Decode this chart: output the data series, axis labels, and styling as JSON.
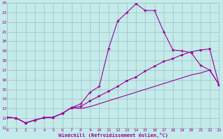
{
  "bg_color": "#c5eaea",
  "grid_color": "#9ec8c8",
  "line_color": "#990099",
  "xlim": [
    0,
    23
  ],
  "ylim": [
    11,
    24
  ],
  "xticks": [
    0,
    1,
    2,
    3,
    4,
    5,
    6,
    7,
    8,
    9,
    10,
    11,
    12,
    13,
    14,
    15,
    16,
    17,
    18,
    19,
    20,
    21,
    22,
    23
  ],
  "yticks": [
    11,
    12,
    13,
    14,
    15,
    16,
    17,
    18,
    19,
    20,
    21,
    22,
    23,
    24
  ],
  "xlabel": "Windchill (Refroidissement éolien,°C)",
  "line1_x": [
    0,
    1,
    2,
    3,
    4,
    5,
    6,
    7,
    8,
    9,
    10,
    11,
    12,
    13,
    14,
    15,
    16,
    17,
    18,
    19,
    20,
    21,
    22,
    23
  ],
  "line1_y": [
    12.1,
    12.0,
    11.5,
    11.8,
    12.05,
    12.1,
    12.5,
    13.1,
    13.5,
    14.7,
    15.3,
    19.2,
    22.1,
    23.0,
    23.9,
    23.2,
    23.2,
    21.0,
    19.1,
    19.0,
    18.8,
    17.5,
    17.0,
    15.5
  ],
  "line2_x": [
    0,
    1,
    2,
    3,
    4,
    5,
    6,
    7,
    8,
    9,
    10,
    11,
    12,
    13,
    14,
    15,
    16,
    17,
    18,
    19,
    20,
    21,
    22,
    23
  ],
  "line2_y": [
    12.1,
    12.0,
    11.5,
    11.8,
    12.05,
    12.1,
    12.5,
    13.1,
    13.2,
    13.8,
    14.3,
    14.8,
    15.3,
    15.9,
    16.3,
    16.9,
    17.4,
    17.9,
    18.2,
    18.6,
    18.9,
    19.1,
    19.2,
    15.5
  ],
  "line3_x": [
    0,
    1,
    2,
    3,
    4,
    5,
    6,
    7,
    8,
    9,
    10,
    11,
    12,
    13,
    14,
    15,
    16,
    17,
    18,
    19,
    20,
    21,
    22,
    23
  ],
  "line3_y": [
    12.1,
    12.0,
    11.5,
    11.8,
    12.05,
    12.1,
    12.5,
    13.1,
    13.0,
    13.2,
    13.5,
    13.8,
    14.1,
    14.4,
    14.7,
    15.0,
    15.3,
    15.6,
    15.9,
    16.2,
    16.5,
    16.7,
    17.0,
    15.5
  ]
}
